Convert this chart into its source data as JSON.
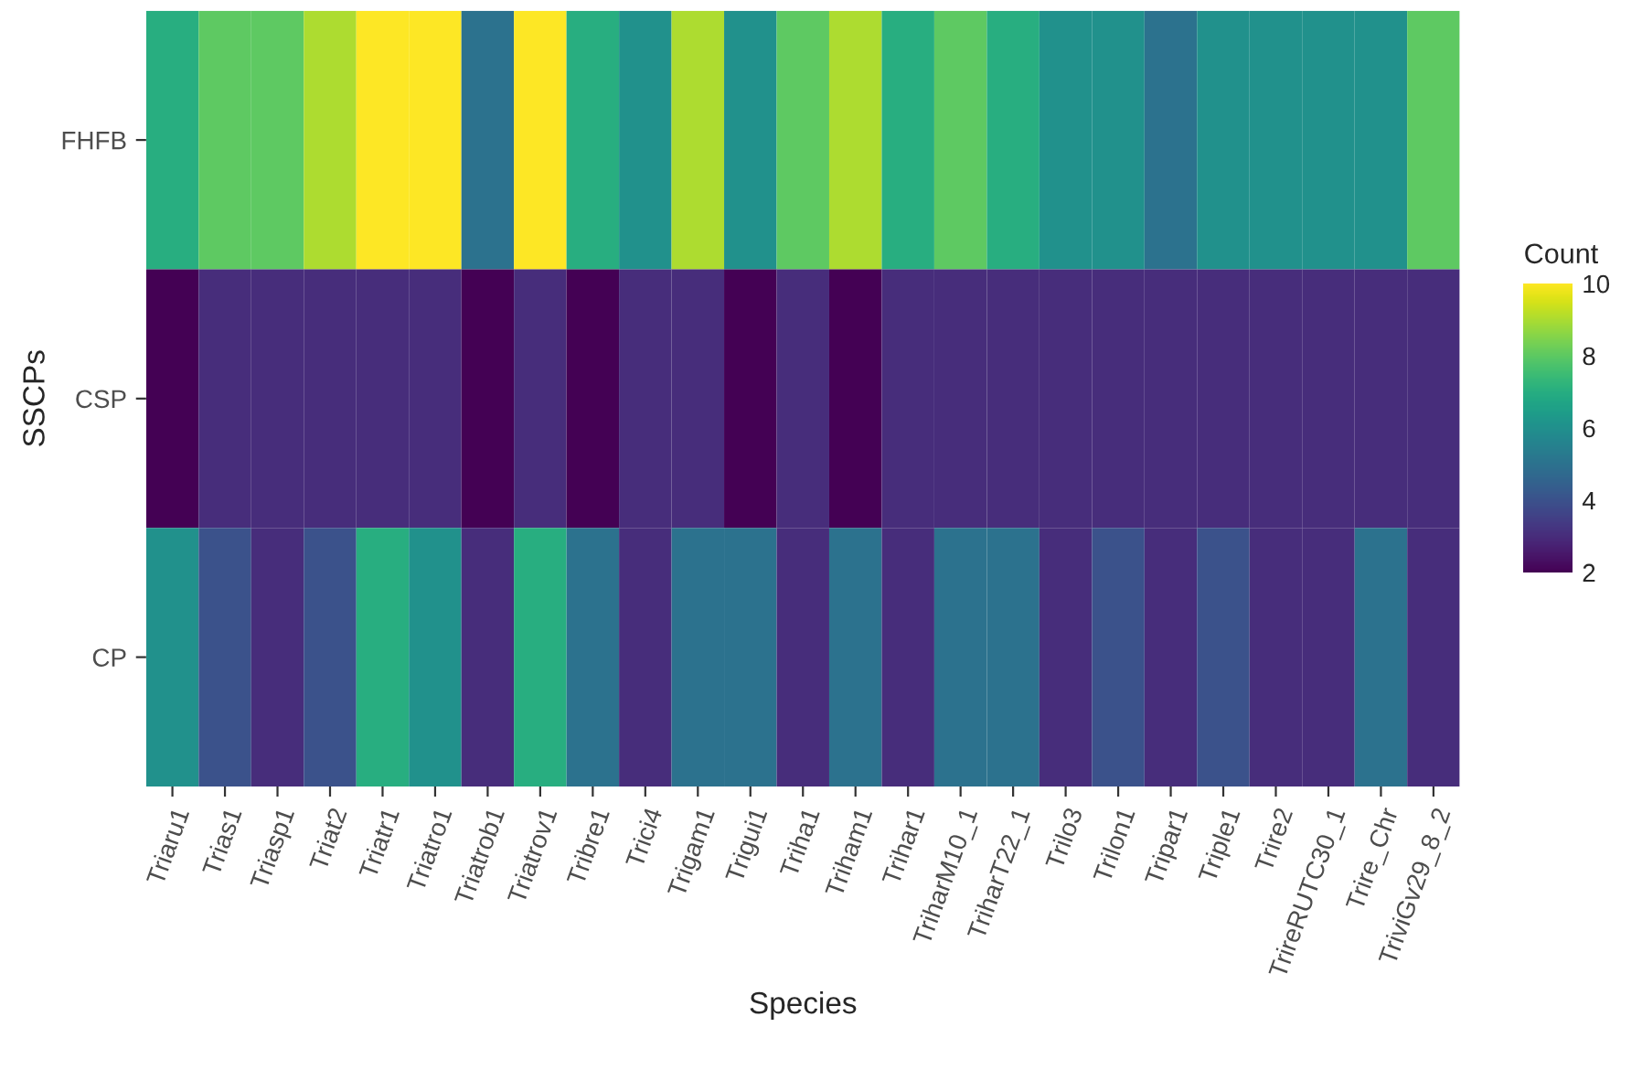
{
  "chart_data": {
    "type": "heatmap",
    "xlabel": "Species",
    "ylabel": "SSCPs",
    "clabel": "Count",
    "categories": [
      "Triaru1",
      "Trias1",
      "Triasp1",
      "Triat2",
      "Triatr1",
      "Triatro1",
      "Triatrob1",
      "Triatrov1",
      "Tribre1",
      "Trici4",
      "Trigam1",
      "Trigui1",
      "Triha1",
      "Triham1",
      "Trihar1",
      "TriharM10_1",
      "TriharT22_1",
      "Trilo3",
      "Trilon1",
      "Tripar1",
      "Triple1",
      "Trire2",
      "TrireRUTC30_1",
      "Trire_Chr",
      "TriviGv29_8_2"
    ],
    "y_categories": [
      "FHFB",
      "CSP",
      "CP"
    ],
    "cells": [
      [
        7,
        8,
        8,
        9,
        10,
        10,
        5,
        10,
        7,
        6,
        9,
        6,
        8,
        9,
        7,
        8,
        7,
        6,
        6,
        5,
        6,
        6,
        6,
        6,
        8
      ],
      [
        2,
        3,
        3,
        3,
        3,
        3,
        2,
        3,
        2,
        3,
        3,
        2,
        3,
        2,
        3,
        3,
        3,
        3,
        3,
        3,
        3,
        3,
        3,
        3,
        3
      ],
      [
        6,
        4,
        3,
        4,
        7,
        6,
        3,
        7,
        5,
        3,
        5,
        5,
        3,
        5,
        3,
        5,
        5,
        3,
        4,
        3,
        4,
        3,
        3,
        5,
        3
      ]
    ],
    "clim": [
      2,
      10
    ],
    "cticks": [
      2,
      4,
      6,
      8,
      10
    ]
  }
}
